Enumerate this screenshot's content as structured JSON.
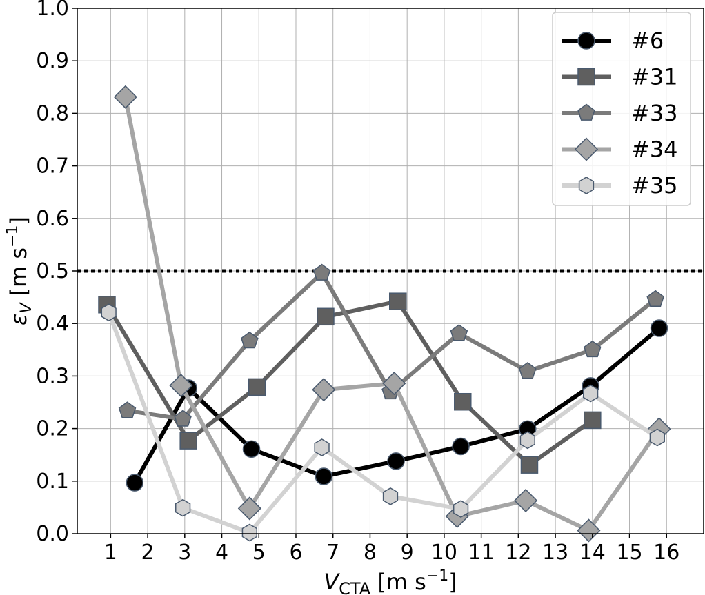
{
  "chart_data": {
    "type": "line",
    "xlabel": "V",
    "xlabel_sub": "CTA",
    "xlabel_unit": "[m s",
    "xlabel_unit_exp": "−1",
    "xlabel_unit_close": "]",
    "ylabel": "ε",
    "ylabel_sub": "V",
    "ylabel_unit": "[m s",
    "ylabel_unit_exp": "−1",
    "ylabel_unit_close": "]",
    "xlim": [
      0.1,
      17.0
    ],
    "ylim": [
      0.0,
      1.0
    ],
    "xticks": [
      1,
      2,
      3,
      4,
      5,
      6,
      7,
      8,
      9,
      10,
      11,
      12,
      13,
      14,
      15,
      16
    ],
    "xtick_labels": [
      "1",
      "2",
      "3",
      "4",
      "5",
      "6",
      "7",
      "8",
      "9",
      "10",
      "11",
      "12",
      "13",
      "14",
      "15",
      "16"
    ],
    "yticks": [
      0.0,
      0.1,
      0.2,
      0.3,
      0.4,
      0.5,
      0.6,
      0.7,
      0.8,
      0.9,
      1.0
    ],
    "ytick_labels": [
      "0.0",
      "0.1",
      "0.2",
      "0.3",
      "0.4",
      "0.5",
      "0.6",
      "0.7",
      "0.8",
      "0.9",
      "1.0"
    ],
    "grid": true,
    "legend_position": "top-right",
    "reference_line": {
      "y": 0.5,
      "style": "dotted",
      "color": "#000000"
    },
    "series": [
      {
        "name": "#6",
        "color": "#000000",
        "marker": "circle",
        "x": [
          1.65,
          3.1,
          4.8,
          6.75,
          8.7,
          10.45,
          12.25,
          13.95,
          15.8
        ],
        "y": [
          0.097,
          0.277,
          0.161,
          0.109,
          0.138,
          0.166,
          0.199,
          0.281,
          0.391
        ]
      },
      {
        "name": "#31",
        "color": "#5f5f5f",
        "marker": "square",
        "x": [
          0.9,
          3.1,
          4.95,
          6.8,
          8.75,
          10.5,
          12.3,
          14.0
        ],
        "y": [
          0.436,
          0.177,
          0.279,
          0.413,
          0.442,
          0.251,
          0.131,
          0.216
        ]
      },
      {
        "name": "#33",
        "color": "#7b7b7b",
        "marker": "pentagon",
        "x": [
          1.45,
          2.95,
          4.75,
          6.7,
          8.55,
          10.4,
          12.25,
          14.0,
          15.7
        ],
        "y": [
          0.234,
          0.218,
          0.367,
          0.496,
          0.27,
          0.381,
          0.309,
          0.35,
          0.446
        ]
      },
      {
        "name": "#34",
        "color": "#a5a5a5",
        "marker": "diamond",
        "x": [
          1.4,
          2.9,
          4.75,
          6.75,
          8.65,
          10.35,
          12.2,
          13.9,
          15.8
        ],
        "y": [
          0.831,
          0.282,
          0.048,
          0.274,
          0.286,
          0.033,
          0.063,
          0.006,
          0.199
        ]
      },
      {
        "name": "#35",
        "color": "#d2d2d2",
        "marker": "hexagon",
        "x": [
          0.95,
          2.95,
          4.75,
          6.7,
          8.55,
          10.45,
          12.25,
          13.95,
          15.75
        ],
        "y": [
          0.421,
          0.049,
          0.002,
          0.164,
          0.071,
          0.047,
          0.178,
          0.267,
          0.183
        ]
      }
    ]
  }
}
